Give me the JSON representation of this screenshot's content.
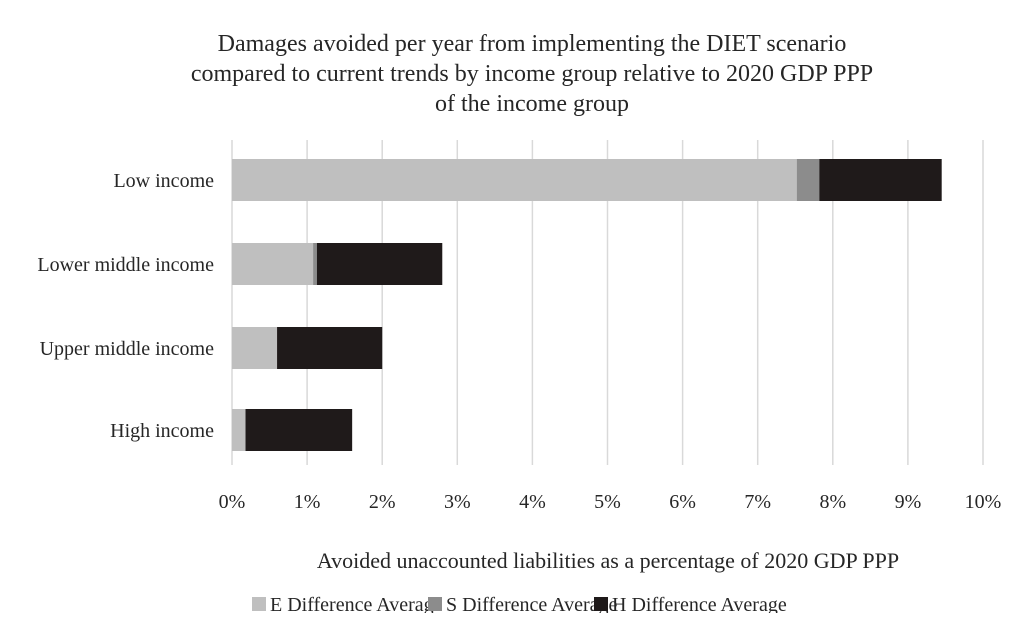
{
  "chart_data": {
    "type": "bar",
    "orientation": "horizontal",
    "stacked": true,
    "title_lines": [
      "Damages avoided per year from implementing the DIET scenario",
      "compared to current trends by income group relative to 2020 GDP PPP",
      "of the income group"
    ],
    "xlabel": "Avoided unaccounted liabilities as a percentage of 2020 GDP PPP",
    "ylabel": "",
    "categories": [
      "Low income",
      "Lower middle income",
      "Upper middle income",
      "High income"
    ],
    "series": [
      {
        "name": "E Difference Average",
        "color": "#bfbfbf",
        "values": [
          7.52,
          1.08,
          0.6,
          0.18
        ]
      },
      {
        "name": "S Difference Average",
        "color": "#8c8c8c",
        "values": [
          0.3,
          0.05,
          0.0,
          0.0
        ]
      },
      {
        "name": "H Difference Average",
        "color": "#1f1a1a",
        "values": [
          1.63,
          1.67,
          1.4,
          1.42
        ]
      }
    ],
    "xlim": [
      0,
      10
    ],
    "xticks": [
      0,
      1,
      2,
      3,
      4,
      5,
      6,
      7,
      8,
      9,
      10
    ],
    "xtick_labels": [
      "0%",
      "1%",
      "2%",
      "3%",
      "4%",
      "5%",
      "6%",
      "7%",
      "8%",
      "9%",
      "10%"
    ],
    "grid": "vertical",
    "legend_position": "bottom"
  }
}
